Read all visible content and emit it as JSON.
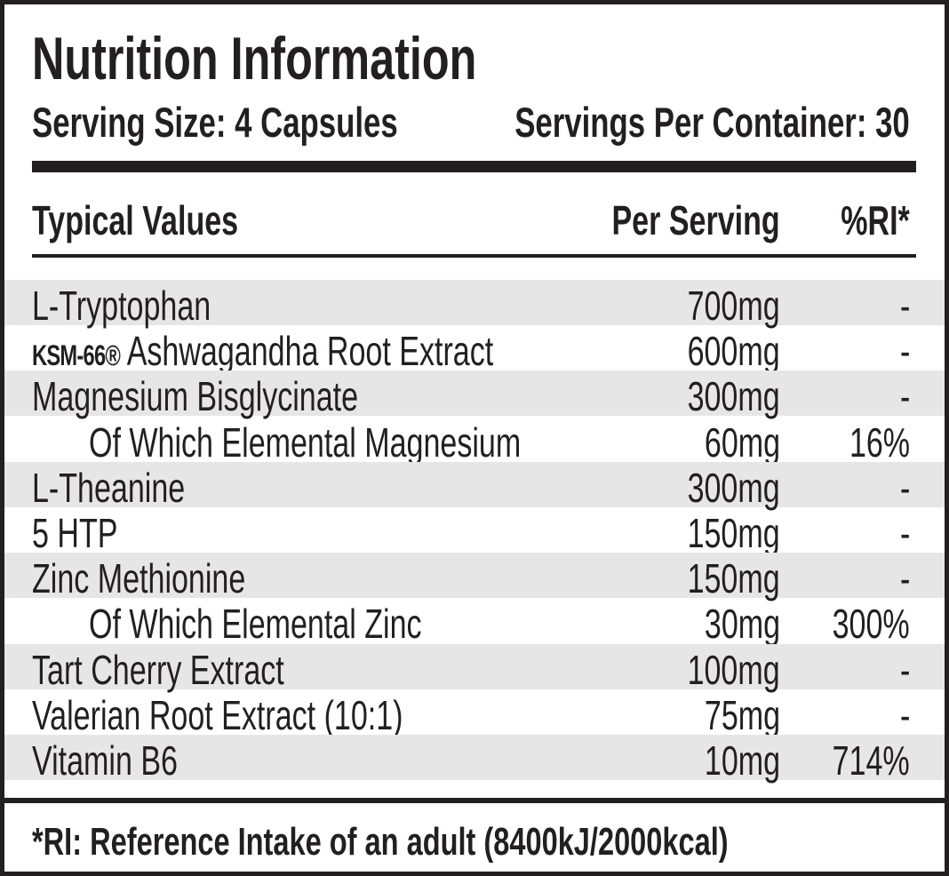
{
  "header": {
    "title": "Nutrition Information",
    "serving_size": "Serving Size: 4 Capsules",
    "servings_per_container": "Servings Per Container: 30"
  },
  "table": {
    "columns": [
      "Typical Values",
      "Per Serving",
      "%RI*"
    ],
    "rows": [
      {
        "name": "L-Tryptophan",
        "amount": "700mg",
        "ri": "-"
      },
      {
        "prefix": "KSM-66®",
        "name": "Ashwagandha Root Extract",
        "amount": "600mg",
        "ri": "-"
      },
      {
        "name": "Magnesium Bisglycinate",
        "amount": "300mg",
        "ri": "-"
      },
      {
        "name": "Of Which Elemental Magnesium",
        "amount": "60mg",
        "ri": "16%",
        "indent": true
      },
      {
        "name": "L-Theanine",
        "amount": "300mg",
        "ri": "-"
      },
      {
        "name": "5 HTP",
        "amount": "150mg",
        "ri": "-"
      },
      {
        "name": "Zinc Methionine",
        "amount": "150mg",
        "ri": "-"
      },
      {
        "name": "Of Which Elemental Zinc",
        "amount": "30mg",
        "ri": "300%",
        "indent": true
      },
      {
        "name": "Tart Cherry Extract",
        "amount": "100mg",
        "ri": "-"
      },
      {
        "name": "Valerian Root Extract (10:1)",
        "amount": "75mg",
        "ri": "-"
      },
      {
        "name": "Vitamin B6",
        "amount": "10mg",
        "ri": "714%"
      }
    ]
  },
  "footer": {
    "note": "*RI: Reference Intake of an adult (8400kJ/2000kcal)"
  }
}
